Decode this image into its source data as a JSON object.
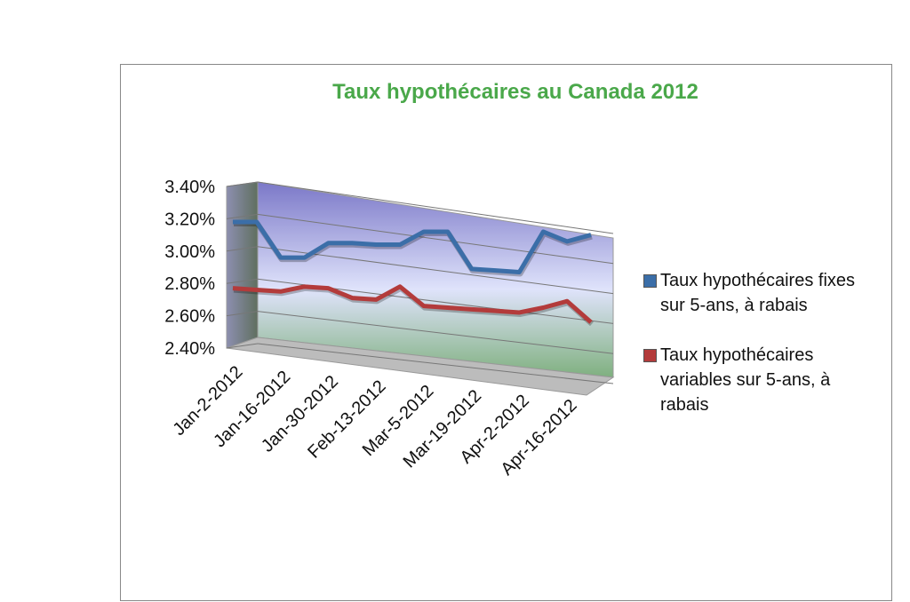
{
  "chart_data": {
    "type": "line",
    "title": "Taux hypothécaires au Canada 2012",
    "categories": [
      "Jan-2-2012",
      null,
      "Jan-16-2012",
      null,
      "Jan-30-2012",
      null,
      "Feb-13-2012",
      null,
      "Mar-5-2012",
      null,
      "Mar-19-2012",
      null,
      "Apr-2-2012",
      null,
      "Apr-16-2012",
      null
    ],
    "series": [
      {
        "name": "Taux hypothécaires fixes sur 5-ans, à rabais",
        "color": "#3b6ea8",
        "values": [
          3.18,
          3.18,
          2.96,
          2.96,
          3.05,
          3.05,
          3.04,
          3.04,
          3.12,
          3.12,
          2.89,
          2.88,
          2.87,
          3.12,
          3.06,
          3.1
        ]
      },
      {
        "name": "Taux hypothécaires variables sur 5-ans, à rabais",
        "color": "#b33b3b",
        "values": [
          2.77,
          2.76,
          2.75,
          2.78,
          2.77,
          2.71,
          2.7,
          2.78,
          2.66,
          2.65,
          2.64,
          2.63,
          2.62,
          2.65,
          2.69,
          2.56
        ]
      }
    ],
    "ylim": [
      2.4,
      3.4
    ],
    "yticks": [
      {
        "value": 2.4,
        "label": "2.40%"
      },
      {
        "value": 2.6,
        "label": "2.60%"
      },
      {
        "value": 2.8,
        "label": "2.80%"
      },
      {
        "value": 3.0,
        "label": "3.00%"
      },
      {
        "value": 3.2,
        "label": "3.20%"
      },
      {
        "value": 3.4,
        "label": "3.40%"
      }
    ],
    "grid": true,
    "legend": "right"
  }
}
